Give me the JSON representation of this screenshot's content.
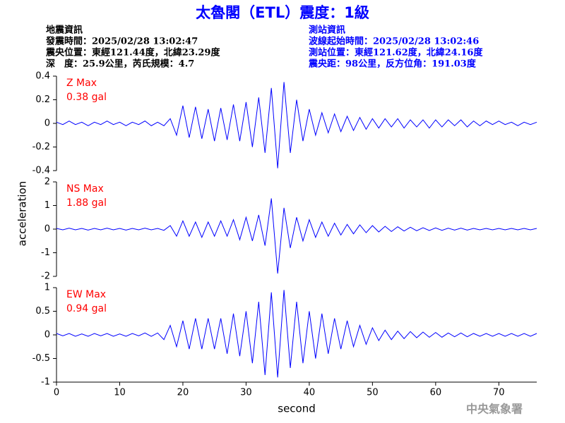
{
  "header": {
    "title": "太魯閣（ETL）震度：1級",
    "event_info": [
      "地震資訊",
      "發震時間：2025/02/28 13:02:47",
      "震央位置：東經121.44度，北緯23.29度",
      "深　度：25.9公里，芮氏規模：4.7"
    ],
    "station_info": [
      "測站資訊",
      "波線起始時間：2025/02/28 13:02:46",
      "測站位置：東經121.62度，北緯24.16度",
      "震央距：98公里，反方位角：191.03度"
    ],
    "watermark": "中央氣象署"
  },
  "chart_data": [
    {
      "type": "line",
      "annotations": [
        "Z Max",
        "0.38 gal"
      ],
      "x": [
        0,
        1,
        2,
        3,
        4,
        5,
        6,
        7,
        8,
        9,
        10,
        11,
        12,
        13,
        14,
        15,
        16,
        17,
        18,
        19,
        20,
        21,
        22,
        23,
        24,
        25,
        26,
        27,
        28,
        29,
        30,
        31,
        32,
        33,
        34,
        35,
        36,
        37,
        38,
        39,
        40,
        41,
        42,
        43,
        44,
        45,
        46,
        47,
        48,
        49,
        50,
        51,
        52,
        53,
        54,
        55,
        56,
        57,
        58,
        59,
        60,
        61,
        62,
        63,
        64,
        65,
        66,
        67,
        68,
        69,
        70,
        71,
        72,
        73,
        74,
        75,
        76
      ],
      "series": [
        {
          "color": "#0000ff",
          "values": [
            0.01,
            -0.01,
            0.02,
            -0.01,
            0.01,
            -0.02,
            0.01,
            -0.01,
            0.02,
            -0.01,
            0.01,
            -0.02,
            0.01,
            -0.01,
            0.02,
            -0.02,
            0.01,
            -0.02,
            0.04,
            -0.1,
            0.15,
            -0.12,
            0.14,
            -0.13,
            0.12,
            -0.15,
            0.13,
            -0.14,
            0.16,
            -0.15,
            0.18,
            -0.2,
            0.22,
            -0.25,
            0.3,
            -0.38,
            0.35,
            -0.25,
            0.2,
            -0.15,
            0.12,
            -0.1,
            0.09,
            -0.08,
            0.08,
            -0.07,
            0.06,
            -0.06,
            0.05,
            -0.05,
            0.04,
            -0.04,
            0.04,
            -0.03,
            0.04,
            -0.04,
            0.03,
            -0.03,
            0.03,
            -0.04,
            0.03,
            -0.03,
            0.03,
            -0.02,
            0.03,
            -0.03,
            0.02,
            -0.02,
            0.02,
            -0.01,
            0.02,
            -0.01,
            0.01,
            -0.02,
            0.01,
            -0.01,
            0.01
          ]
        }
      ],
      "xlim": [
        0,
        76
      ],
      "ylim": [
        -0.4,
        0.4
      ],
      "yticks": [
        -0.4,
        -0.2,
        0,
        0.2,
        0.4
      ]
    },
    {
      "type": "line",
      "annotations": [
        "NS Max",
        "1.88 gal"
      ],
      "ylabel": "acceleration",
      "x": [
        0,
        1,
        2,
        3,
        4,
        5,
        6,
        7,
        8,
        9,
        10,
        11,
        12,
        13,
        14,
        15,
        16,
        17,
        18,
        19,
        20,
        21,
        22,
        23,
        24,
        25,
        26,
        27,
        28,
        29,
        30,
        31,
        32,
        33,
        34,
        35,
        36,
        37,
        38,
        39,
        40,
        41,
        42,
        43,
        44,
        45,
        46,
        47,
        48,
        49,
        50,
        51,
        52,
        53,
        54,
        55,
        56,
        57,
        58,
        59,
        60,
        61,
        62,
        63,
        64,
        65,
        66,
        67,
        68,
        69,
        70,
        71,
        72,
        73,
        74,
        75,
        76
      ],
      "series": [
        {
          "color": "#0000ff",
          "values": [
            0.03,
            -0.03,
            0.04,
            -0.03,
            0.03,
            -0.04,
            0.03,
            -0.03,
            0.04,
            -0.03,
            0.03,
            -0.04,
            0.03,
            -0.03,
            0.04,
            -0.03,
            0.03,
            -0.05,
            0.15,
            -0.3,
            0.35,
            -0.3,
            0.3,
            -0.35,
            0.3,
            -0.3,
            0.35,
            -0.3,
            0.4,
            -0.45,
            0.5,
            -0.5,
            0.6,
            -0.7,
            1.3,
            -1.88,
            0.9,
            -0.8,
            0.5,
            -0.5,
            0.4,
            -0.35,
            0.3,
            -0.3,
            0.25,
            -0.25,
            0.2,
            -0.2,
            0.18,
            -0.15,
            0.15,
            -0.12,
            0.12,
            -0.1,
            0.1,
            -0.08,
            0.08,
            -0.07,
            0.06,
            -0.06,
            0.05,
            -0.05,
            0.04,
            -0.04,
            0.04,
            -0.04,
            0.03,
            -0.03,
            0.03,
            -0.03,
            0.03,
            -0.03,
            0.03,
            -0.03,
            0.03,
            -0.03,
            0.03
          ]
        }
      ],
      "xlim": [
        0,
        76
      ],
      "ylim": [
        -2,
        2
      ],
      "yticks": [
        -2,
        -1,
        0,
        1,
        2
      ]
    },
    {
      "type": "line",
      "annotations": [
        "EW Max",
        "0.94 gal"
      ],
      "xlabel": "second",
      "x": [
        0,
        1,
        2,
        3,
        4,
        5,
        6,
        7,
        8,
        9,
        10,
        11,
        12,
        13,
        14,
        15,
        16,
        17,
        18,
        19,
        20,
        21,
        22,
        23,
        24,
        25,
        26,
        27,
        28,
        29,
        30,
        31,
        32,
        33,
        34,
        35,
        36,
        37,
        38,
        39,
        40,
        41,
        42,
        43,
        44,
        45,
        46,
        47,
        48,
        49,
        50,
        51,
        52,
        53,
        54,
        55,
        56,
        57,
        58,
        59,
        60,
        61,
        62,
        63,
        64,
        65,
        66,
        67,
        68,
        69,
        70,
        71,
        72,
        73,
        74,
        75,
        76
      ],
      "series": [
        {
          "color": "#0000ff",
          "values": [
            0.03,
            -0.02,
            0.03,
            -0.03,
            0.02,
            -0.03,
            0.03,
            -0.02,
            0.03,
            -0.03,
            0.02,
            -0.03,
            0.03,
            -0.02,
            0.04,
            -0.03,
            0.04,
            -0.1,
            0.2,
            -0.25,
            0.3,
            -0.3,
            0.35,
            -0.3,
            0.35,
            -0.3,
            0.35,
            -0.4,
            0.45,
            -0.45,
            0.5,
            -0.6,
            0.7,
            -0.85,
            0.9,
            -0.9,
            0.95,
            -0.7,
            0.7,
            -0.6,
            0.5,
            -0.5,
            0.45,
            -0.4,
            0.35,
            -0.3,
            0.3,
            -0.25,
            0.2,
            -0.2,
            0.15,
            -0.12,
            0.1,
            -0.1,
            0.08,
            -0.08,
            0.07,
            -0.06,
            0.06,
            -0.05,
            0.05,
            -0.05,
            0.04,
            -0.04,
            0.04,
            -0.04,
            0.03,
            -0.03,
            0.03,
            -0.03,
            0.03,
            -0.03,
            0.03,
            -0.03,
            0.03,
            -0.03,
            0.03
          ]
        }
      ],
      "xlim": [
        0,
        76
      ],
      "xticks": [
        0,
        10,
        20,
        30,
        40,
        50,
        60,
        70
      ],
      "ylim": [
        -1,
        1
      ],
      "yticks": [
        -1,
        -0.5,
        0,
        0.5,
        1
      ]
    }
  ]
}
